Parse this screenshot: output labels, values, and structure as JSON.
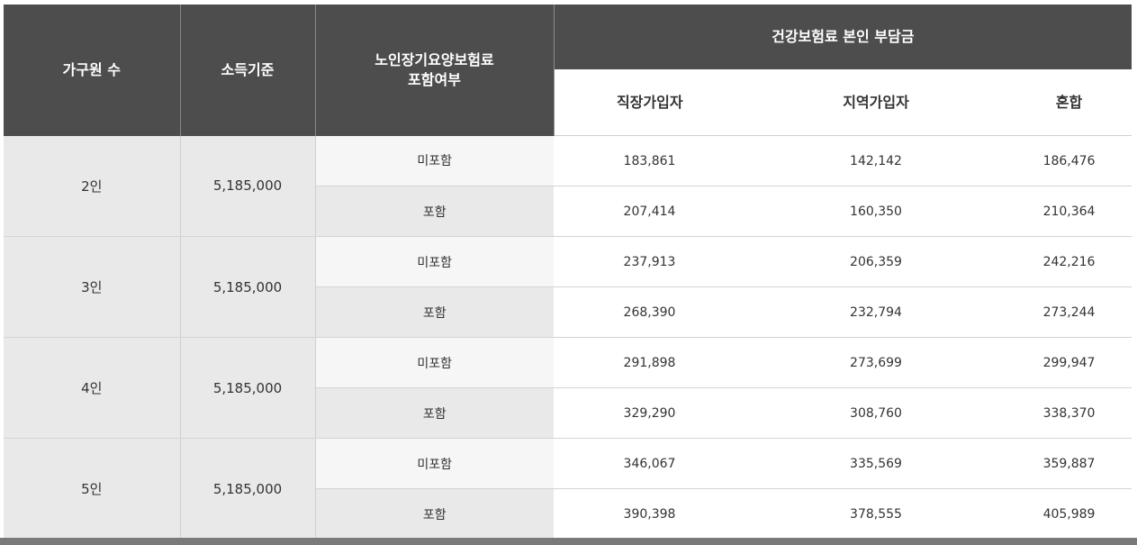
{
  "header": {
    "members": "가구원 수",
    "income": "소득기준",
    "ltc_line1": "노인장기요양보험료",
    "ltc_line2": "포함여부",
    "group": "건강보험료 본인 부담금",
    "employee": "직장가입자",
    "regional": "지역가입자",
    "mixed": "혼합"
  },
  "rows": [
    {
      "members": "2인",
      "income": "5,185,000",
      "excluded": {
        "label": "미포함",
        "employee": "183,861",
        "regional": "142,142",
        "mixed": "186,476"
      },
      "included": {
        "label": "포함",
        "employee": "207,414",
        "regional": "160,350",
        "mixed": "210,364"
      }
    },
    {
      "members": "3인",
      "income": "5,185,000",
      "excluded": {
        "label": "미포함",
        "employee": "237,913",
        "regional": "206,359",
        "mixed": "242,216"
      },
      "included": {
        "label": "포함",
        "employee": "268,390",
        "regional": "232,794",
        "mixed": "273,244"
      }
    },
    {
      "members": "4인",
      "income": "5,185,000",
      "excluded": {
        "label": "미포함",
        "employee": "291,898",
        "regional": "273,699",
        "mixed": "299,947"
      },
      "included": {
        "label": "포함",
        "employee": "329,290",
        "regional": "308,760",
        "mixed": "338,370"
      }
    },
    {
      "members": "5인",
      "income": "5,185,000",
      "excluded": {
        "label": "미포함",
        "employee": "346,067",
        "regional": "335,569",
        "mixed": "359,887"
      },
      "included": {
        "label": "포함",
        "employee": "390,398",
        "regional": "378,555",
        "mixed": "405,989"
      }
    }
  ]
}
